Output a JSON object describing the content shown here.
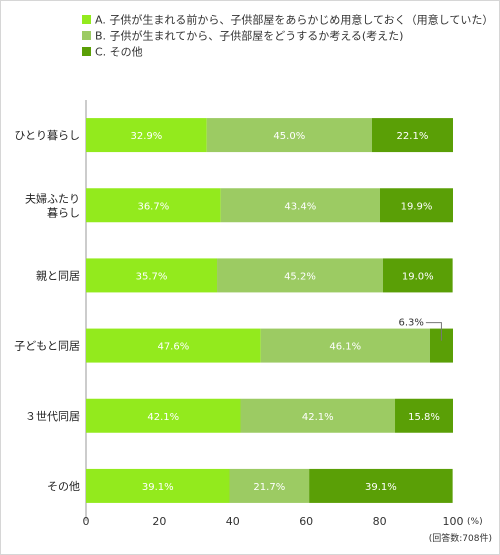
{
  "chart_data": {
    "type": "bar",
    "orientation": "horizontal",
    "stacked": true,
    "categories": [
      [
        "ひとり暮らし"
      ],
      [
        "夫婦ふたり",
        "暮らし"
      ],
      [
        "親と同居"
      ],
      [
        "子どもと同居"
      ],
      [
        "３世代同居"
      ],
      [
        "その他"
      ]
    ],
    "series": [
      {
        "name": "A. 子供が生まれる前から、子供部屋をあらかじめ用意しておく（用意していた）",
        "color": "#93ea1d",
        "values": [
          32.9,
          36.7,
          35.7,
          47.6,
          42.1,
          39.1
        ]
      },
      {
        "name": "B. 子供が生まれてから、子供部屋をどうするか考える(考えた)",
        "color": "#9ccb63",
        "values": [
          45.0,
          43.4,
          45.2,
          46.1,
          42.1,
          21.7
        ]
      },
      {
        "name": "C. その他",
        "color": "#5a9f06",
        "values": [
          22.1,
          19.9,
          19.0,
          6.3,
          15.8,
          39.1
        ]
      }
    ],
    "xlim": [
      0,
      100
    ],
    "x_ticks": [
      "0",
      "20",
      "40",
      "60",
      "80",
      "100"
    ],
    "unit": "(%)",
    "note": "(回答数:708件)",
    "legend_position": "top"
  }
}
